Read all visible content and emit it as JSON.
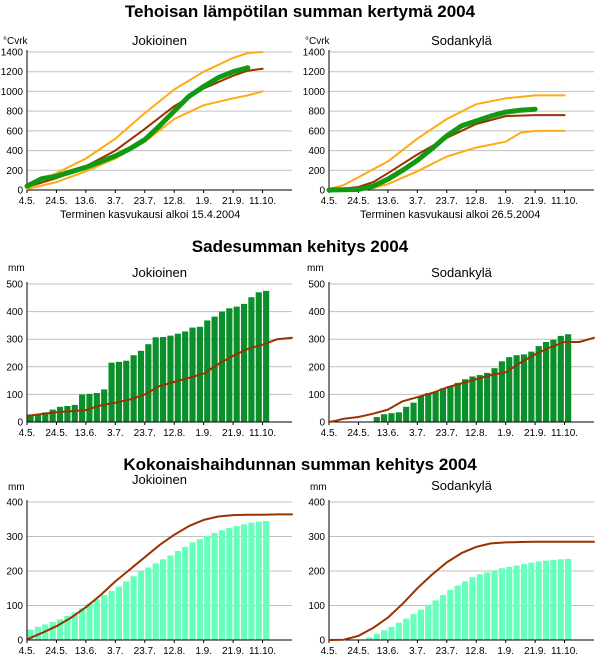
{
  "sections": [
    {
      "title": "Tehoisan lämpötilan summan kertymä 2004"
    },
    {
      "title": "Sadesumman kehitys 2004"
    },
    {
      "title": "Kokonaishaihdunnan summan kehitys 2004"
    }
  ],
  "colors": {
    "green_line": "#119911",
    "bar_green": "#0b8f2b",
    "bar_mint": "#66ffbb",
    "brown": "#993300",
    "orange": "#ffaa11",
    "grid": "#c0c0c0",
    "axis": "#000000"
  },
  "chart_data": [
    {
      "type": "line",
      "section": 0,
      "station": "Jokioinen",
      "unit": "°Cvrk",
      "ylim": [
        0,
        1400
      ],
      "yticks": [
        0,
        200,
        400,
        600,
        800,
        1000,
        1200,
        1400
      ],
      "x_ticks": [
        "4.5.",
        "24.5.",
        "13.6.",
        "3.7.",
        "23.7.",
        "12.8.",
        "1.9.",
        "21.9.",
        "11.10."
      ],
      "note": "Terminen kasvukausi alkoi 15.4.2004",
      "series": [
        {
          "role": "current",
          "color": "green",
          "width": 5,
          "x": [
            0,
            10,
            20,
            40,
            60,
            70,
            80,
            90,
            100,
            110,
            120,
            130,
            140,
            150
          ],
          "y": [
            40,
            115,
            140,
            230,
            345,
            420,
            510,
            650,
            800,
            950,
            1050,
            1140,
            1200,
            1240
          ]
        },
        {
          "role": "mean",
          "color": "brown",
          "width": 2,
          "x": [
            0,
            20,
            40,
            60,
            80,
            100,
            120,
            140,
            150,
            160
          ],
          "y": [
            30,
            120,
            240,
            400,
            620,
            850,
            1030,
            1160,
            1210,
            1230
          ]
        },
        {
          "role": "upper",
          "color": "orange",
          "width": 2,
          "x": [
            0,
            20,
            40,
            60,
            80,
            100,
            120,
            140,
            150,
            160
          ],
          "y": [
            40,
            170,
            320,
            520,
            780,
            1020,
            1200,
            1340,
            1390,
            1400
          ]
        },
        {
          "role": "lower",
          "color": "orange",
          "width": 2,
          "x": [
            0,
            20,
            40,
            60,
            80,
            100,
            120,
            140,
            150,
            160
          ],
          "y": [
            10,
            80,
            190,
            320,
            490,
            720,
            860,
            930,
            960,
            1000
          ]
        }
      ]
    },
    {
      "type": "line",
      "section": 0,
      "station": "Sodankylä",
      "unit": "°Cvrk",
      "ylim": [
        0,
        1400
      ],
      "yticks": [
        0,
        200,
        400,
        600,
        800,
        1000,
        1200,
        1400
      ],
      "x_ticks": [
        "4.5.",
        "24.5.",
        "13.6.",
        "3.7.",
        "23.7.",
        "12.8.",
        "1.9.",
        "21.9.",
        "11.10."
      ],
      "note": "Terminen kasvukausi alkoi 26.5.2004",
      "series": [
        {
          "role": "current",
          "color": "green",
          "width": 5,
          "x": [
            0,
            20,
            30,
            40,
            50,
            60,
            70,
            80,
            90,
            100,
            110,
            120,
            130,
            140
          ],
          "y": [
            0,
            5,
            40,
            110,
            200,
            300,
            420,
            550,
            650,
            700,
            750,
            790,
            810,
            820
          ]
        },
        {
          "role": "mean",
          "color": "brown",
          "width": 2,
          "x": [
            0,
            20,
            30,
            40,
            60,
            80,
            100,
            120,
            140,
            150,
            160
          ],
          "y": [
            0,
            30,
            80,
            170,
            360,
            530,
            670,
            750,
            760,
            760,
            760
          ]
        },
        {
          "role": "upper",
          "color": "orange",
          "width": 2,
          "x": [
            0,
            10,
            20,
            30,
            40,
            60,
            80,
            100,
            120,
            140,
            150,
            160
          ],
          "y": [
            10,
            50,
            130,
            210,
            290,
            520,
            720,
            870,
            930,
            960,
            960,
            960
          ]
        },
        {
          "role": "lower",
          "color": "orange",
          "width": 2,
          "x": [
            0,
            20,
            30,
            40,
            60,
            80,
            100,
            120,
            130,
            140,
            150,
            160
          ],
          "y": [
            0,
            5,
            20,
            60,
            190,
            340,
            430,
            490,
            580,
            600,
            600,
            600
          ]
        }
      ]
    },
    {
      "type": "bar+line",
      "section": 1,
      "station": "Jokioinen",
      "unit": "mm",
      "ylim": [
        0,
        500
      ],
      "yticks": [
        0,
        100,
        200,
        300,
        400,
        500
      ],
      "x_ticks": [
        "4.5.",
        "24.5.",
        "13.6.",
        "3.7.",
        "23.7.",
        "12.8.",
        "1.9.",
        "21.9.",
        "11.10."
      ],
      "bars": [
        27,
        28,
        35,
        45,
        55,
        58,
        62,
        100,
        102,
        105,
        118,
        215,
        218,
        222,
        242,
        258,
        282,
        307,
        308,
        313,
        320,
        328,
        342,
        345,
        368,
        382,
        400,
        412,
        418,
        428,
        452,
        470,
        475
      ],
      "line": {
        "x": [
          0,
          20,
          40,
          50,
          60,
          70,
          80,
          90,
          100,
          110,
          120,
          130,
          140,
          150,
          160,
          170,
          180
        ],
        "y": [
          22,
          35,
          43,
          60,
          70,
          82,
          100,
          130,
          145,
          160,
          175,
          210,
          240,
          265,
          280,
          300,
          305
        ]
      }
    },
    {
      "type": "bar+line",
      "section": 1,
      "station": "Sodankylä",
      "unit": "mm",
      "ylim": [
        0,
        500
      ],
      "yticks": [
        0,
        100,
        200,
        300,
        400,
        500
      ],
      "x_ticks": [
        "4.5.",
        "24.5.",
        "13.6.",
        "3.7.",
        "23.7.",
        "12.8.",
        "1.9.",
        "21.9.",
        "11.10."
      ],
      "bars": [
        0,
        0,
        0,
        0,
        0,
        0,
        18,
        28,
        32,
        35,
        55,
        70,
        95,
        105,
        110,
        122,
        130,
        142,
        155,
        165,
        170,
        178,
        195,
        220,
        235,
        242,
        245,
        255,
        275,
        290,
        298,
        312,
        318
      ],
      "line": {
        "x": [
          0,
          5,
          10,
          20,
          30,
          40,
          50,
          60,
          70,
          80,
          90,
          100,
          110,
          120,
          130,
          140,
          150,
          160,
          170,
          180
        ],
        "y": [
          0,
          5,
          12,
          18,
          30,
          45,
          75,
          90,
          105,
          125,
          140,
          155,
          170,
          180,
          215,
          245,
          270,
          290,
          290,
          305
        ]
      }
    },
    {
      "type": "bar+line",
      "section": 2,
      "station": "Jokioinen",
      "unit": "mm",
      "ylim": [
        0,
        400
      ],
      "yticks": [
        0,
        100,
        200,
        300,
        400
      ],
      "x_ticks": [
        "4.5.",
        "24.5.",
        "13.6.",
        "3.7.",
        "23.7.",
        "12.8.",
        "1.9.",
        "21.9.",
        "11.10."
      ],
      "bars": [
        30,
        38,
        45,
        52,
        60,
        70,
        80,
        92,
        105,
        118,
        130,
        142,
        155,
        170,
        185,
        198,
        210,
        222,
        234,
        245,
        258,
        270,
        283,
        292,
        302,
        310,
        318,
        325,
        330,
        335,
        340,
        343,
        345
      ],
      "line": {
        "x": [
          0,
          10,
          20,
          30,
          40,
          50,
          60,
          70,
          80,
          90,
          100,
          110,
          120,
          130,
          140,
          150,
          160,
          170,
          180
        ],
        "y": [
          2,
          20,
          40,
          65,
          95,
          130,
          170,
          205,
          240,
          275,
          305,
          330,
          348,
          358,
          362,
          363,
          363,
          364,
          364
        ]
      }
    },
    {
      "type": "bar+line",
      "section": 2,
      "station": "Sodankylä",
      "unit": "mm",
      "ylim": [
        0,
        400
      ],
      "yticks": [
        0,
        100,
        200,
        300,
        400
      ],
      "x_ticks": [
        "4.5.",
        "24.5.",
        "13.6.",
        "3.7.",
        "23.7.",
        "12.8.",
        "1.9.",
        "21.9.",
        "11.10."
      ],
      "bars": [
        0,
        0,
        0,
        0,
        0,
        8,
        18,
        28,
        38,
        50,
        62,
        75,
        88,
        102,
        115,
        130,
        145,
        158,
        170,
        182,
        190,
        196,
        202,
        208,
        212,
        216,
        220,
        224,
        228,
        230,
        232,
        234,
        235
      ],
      "line": {
        "x": [
          0,
          10,
          20,
          30,
          40,
          50,
          60,
          70,
          80,
          90,
          100,
          110,
          120,
          130,
          140,
          150,
          160,
          170,
          180
        ],
        "y": [
          0,
          1,
          12,
          35,
          65,
          105,
          150,
          190,
          225,
          252,
          270,
          280,
          283,
          284,
          285,
          285,
          285,
          285,
          285
        ]
      }
    }
  ]
}
